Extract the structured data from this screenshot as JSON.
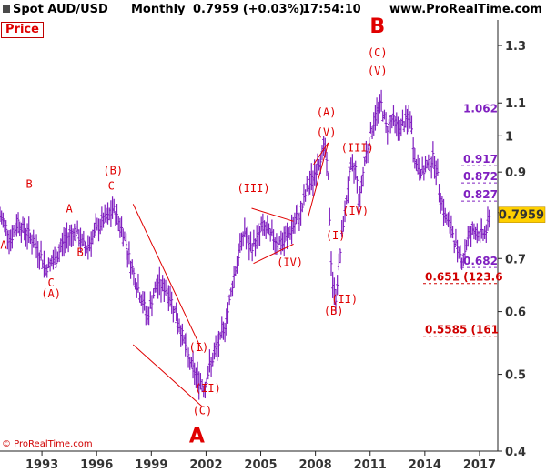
{
  "header": {
    "instrument": "Spot AUD/USD",
    "period": "Monthly",
    "quote": "0.7959 (+0.03%)",
    "time": "17:54:10",
    "site": "www.ProRealTime.com"
  },
  "panel_label": "Price",
  "copyright": "© ProRealTime.com",
  "chart_data": {
    "type": "bar",
    "scale": "log",
    "ylim": [
      0.4,
      1.4
    ],
    "xlim": [
      1990.7,
      2018.0
    ],
    "yticks": [
      0.4,
      0.5,
      0.6,
      0.7,
      0.8,
      0.9,
      1,
      1.1,
      1.3
    ],
    "ytick_labels": [
      "0.4",
      "0.5",
      "0.6",
      "0.7",
      "0.8",
      "0.9",
      "1",
      "1.1",
      "1.3"
    ],
    "xticks": [
      1993,
      1996,
      1999,
      2002,
      2005,
      2008,
      2011,
      2014,
      2017
    ],
    "xtick_labels": [
      "1993",
      "1996",
      "1999",
      "2002",
      "2005",
      "2008",
      "2011",
      "2014",
      "2017"
    ],
    "current_price": "0.7959",
    "price_path": [
      [
        1990.7,
        0.79
      ],
      [
        1991.0,
        0.77
      ],
      [
        1991.3,
        0.74
      ],
      [
        1991.7,
        0.78
      ],
      [
        1992.0,
        0.76
      ],
      [
        1992.3,
        0.75
      ],
      [
        1992.6,
        0.73
      ],
      [
        1992.9,
        0.71
      ],
      [
        1993.2,
        0.68
      ],
      [
        1993.5,
        0.69
      ],
      [
        1993.8,
        0.7
      ],
      [
        1994.1,
        0.73
      ],
      [
        1994.5,
        0.75
      ],
      [
        1994.8,
        0.76
      ],
      [
        1995.1,
        0.74
      ],
      [
        1995.4,
        0.72
      ],
      [
        1995.7,
        0.74
      ],
      [
        1996.0,
        0.76
      ],
      [
        1996.3,
        0.78
      ],
      [
        1996.7,
        0.79
      ],
      [
        1996.9,
        0.81
      ],
      [
        1997.2,
        0.78
      ],
      [
        1997.5,
        0.75
      ],
      [
        1997.8,
        0.7
      ],
      [
        1998.1,
        0.66
      ],
      [
        1998.5,
        0.62
      ],
      [
        1998.8,
        0.59
      ],
      [
        1999.1,
        0.63
      ],
      [
        1999.4,
        0.65
      ],
      [
        1999.8,
        0.64
      ],
      [
        2000.1,
        0.62
      ],
      [
        2000.5,
        0.58
      ],
      [
        2000.8,
        0.55
      ],
      [
        2001.1,
        0.52
      ],
      [
        2001.4,
        0.5
      ],
      [
        2001.7,
        0.49
      ],
      [
        2001.9,
        0.48
      ],
      [
        2002.2,
        0.51
      ],
      [
        2002.6,
        0.54
      ],
      [
        2002.9,
        0.56
      ],
      [
        2003.2,
        0.6
      ],
      [
        2003.5,
        0.66
      ],
      [
        2003.8,
        0.71
      ],
      [
        2004.1,
        0.76
      ],
      [
        2004.4,
        0.72
      ],
      [
        2004.8,
        0.74
      ],
      [
        2005.1,
        0.77
      ],
      [
        2005.5,
        0.75
      ],
      [
        2005.8,
        0.74
      ],
      [
        2006.2,
        0.73
      ],
      [
        2006.5,
        0.75
      ],
      [
        2006.8,
        0.77
      ],
      [
        2007.2,
        0.8
      ],
      [
        2007.5,
        0.85
      ],
      [
        2007.9,
        0.89
      ],
      [
        2008.2,
        0.93
      ],
      [
        2008.5,
        0.97
      ],
      [
        2008.7,
        0.88
      ],
      [
        2008.9,
        0.66
      ],
      [
        2009.1,
        0.62
      ],
      [
        2009.3,
        0.69
      ],
      [
        2009.6,
        0.8
      ],
      [
        2009.9,
        0.9
      ],
      [
        2010.2,
        0.91
      ],
      [
        2010.4,
        0.82
      ],
      [
        2010.7,
        0.93
      ],
      [
        2011.0,
        1.0
      ],
      [
        2011.3,
        1.06
      ],
      [
        2011.6,
        1.1
      ],
      [
        2011.9,
        1.02
      ],
      [
        2012.2,
        1.05
      ],
      [
        2012.6,
        1.02
      ],
      [
        2012.9,
        1.04
      ],
      [
        2013.2,
        1.05
      ],
      [
        2013.5,
        0.92
      ],
      [
        2013.9,
        0.9
      ],
      [
        2014.2,
        0.92
      ],
      [
        2014.5,
        0.94
      ],
      [
        2014.8,
        0.86
      ],
      [
        2015.1,
        0.79
      ],
      [
        2015.5,
        0.76
      ],
      [
        2015.8,
        0.71
      ],
      [
        2016.1,
        0.7
      ],
      [
        2016.4,
        0.75
      ],
      [
        2016.8,
        0.76
      ],
      [
        2017.1,
        0.75
      ],
      [
        2017.4,
        0.76
      ],
      [
        2017.6,
        0.7959
      ]
    ],
    "annotations": [
      {
        "text": "A",
        "x": 1990.9,
        "y": 0.72,
        "size": "small"
      },
      {
        "text": "B",
        "x": 1992.3,
        "y": 0.86,
        "size": "small"
      },
      {
        "text": "C",
        "x": 1993.5,
        "y": 0.645,
        "size": "small"
      },
      {
        "text": "(A)",
        "x": 1993.5,
        "y": 0.625,
        "size": "small"
      },
      {
        "text": "A",
        "x": 1994.5,
        "y": 0.8,
        "size": "small"
      },
      {
        "text": "B",
        "x": 1995.1,
        "y": 0.705,
        "size": "small"
      },
      {
        "text": "(B)",
        "x": 1996.9,
        "y": 0.895,
        "size": "small"
      },
      {
        "text": "C",
        "x": 1996.8,
        "y": 0.855,
        "size": "small"
      },
      {
        "text": "(I)",
        "x": 2001.6,
        "y": 0.535,
        "size": "small"
      },
      {
        "text": "(II)",
        "x": 2002.1,
        "y": 0.475,
        "size": "small"
      },
      {
        "text": "(C)",
        "x": 2001.8,
        "y": 0.445,
        "size": "small"
      },
      {
        "text": "A",
        "x": 2001.5,
        "y": 0.41,
        "size": "large"
      },
      {
        "text": "(III)",
        "x": 2004.6,
        "y": 0.85,
        "size": "small"
      },
      {
        "text": "(IV)",
        "x": 2006.6,
        "y": 0.685,
        "size": "small"
      },
      {
        "text": "(A)",
        "x": 2008.6,
        "y": 1.06,
        "size": "small"
      },
      {
        "text": "(V)",
        "x": 2008.6,
        "y": 1.0,
        "size": "small"
      },
      {
        "text": "(I)",
        "x": 2009.1,
        "y": 0.74,
        "size": "small"
      },
      {
        "text": "(II)",
        "x": 2009.6,
        "y": 0.615,
        "size": "small"
      },
      {
        "text": "(B)",
        "x": 2009.0,
        "y": 0.595,
        "size": "small"
      },
      {
        "text": "(III)",
        "x": 2010.3,
        "y": 0.955,
        "size": "small"
      },
      {
        "text": "(IV)",
        "x": 2010.2,
        "y": 0.795,
        "size": "small"
      },
      {
        "text": "(V)",
        "x": 2011.4,
        "y": 1.195,
        "size": "small"
      },
      {
        "text": "(C)",
        "x": 2011.4,
        "y": 1.26,
        "size": "small"
      },
      {
        "text": "B",
        "x": 2011.4,
        "y": 1.35,
        "size": "large"
      }
    ],
    "trendlines": [
      [
        [
          1998.0,
          0.82
        ],
        [
          2001.8,
          0.535
        ]
      ],
      [
        [
          1998.0,
          0.545
        ],
        [
          2001.8,
          0.455
        ]
      ],
      [
        [
          2004.5,
          0.81
        ],
        [
          2006.8,
          0.78
        ]
      ],
      [
        [
          2004.6,
          0.69
        ],
        [
          2006.8,
          0.73
        ]
      ],
      [
        [
          2007.6,
          0.79
        ],
        [
          2008.7,
          0.98
        ]
      ],
      [
        [
          2007.9,
          0.92
        ],
        [
          2008.7,
          0.98
        ]
      ]
    ],
    "levels": [
      {
        "label": "1.062",
        "value": 1.062,
        "color": "purple"
      },
      {
        "label": "0.917",
        "value": 0.917,
        "color": "purple"
      },
      {
        "label": "0.872",
        "value": 0.872,
        "color": "purple"
      },
      {
        "label": "0.827",
        "value": 0.827,
        "color": "purple"
      },
      {
        "label": "0.682",
        "value": 0.682,
        "color": "purple"
      },
      {
        "label": "0.651 (123.6",
        "value": 0.651,
        "color": "red"
      },
      {
        "label": "0.5585 (161",
        "value": 0.5585,
        "color": "red"
      }
    ],
    "colors": {
      "bars": "#8020c0",
      "annotations": "#e00000",
      "current_price_box": "#ffd000"
    }
  }
}
